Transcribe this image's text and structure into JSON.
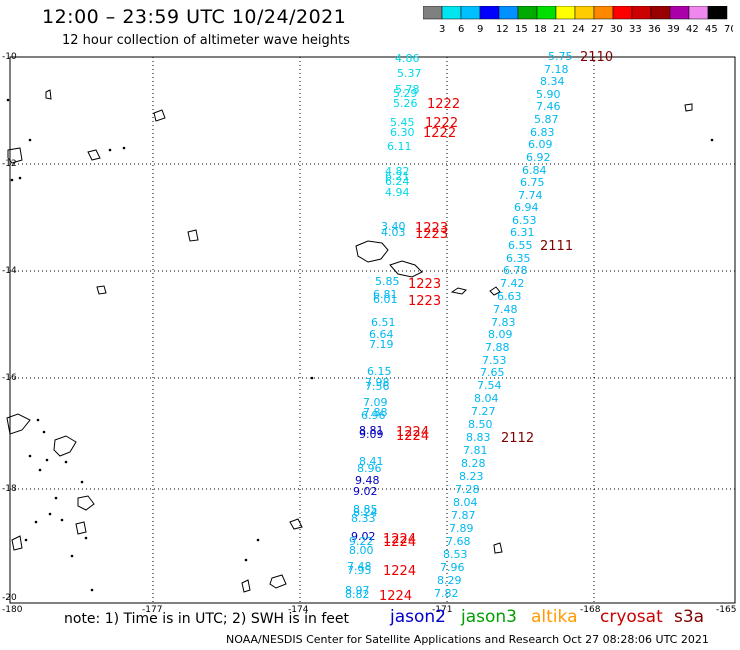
{
  "title": "12:00 – 23:59 UTC 10/24/2021",
  "subtitle": "12 hour collection of altimeter wave heights",
  "colorbar": {
    "labels": [
      "3",
      "6",
      "9",
      "12",
      "15",
      "18",
      "21",
      "24",
      "27",
      "30",
      "33",
      "36",
      "39",
      "42",
      "45",
      "70 (ft)"
    ],
    "colors": [
      "#808080",
      "#00e5ee",
      "#00c0ff",
      "#0000ff",
      "#0090ff",
      "#00aa00",
      "#00e000",
      "#ffff00",
      "#ffcc00",
      "#ff8800",
      "#ff0000",
      "#cc0000",
      "#990000",
      "#aa00aa",
      "#ee88ee",
      "#000000"
    ]
  },
  "axes": {
    "x_ticks": [
      "-180",
      "-177",
      "-174",
      "-171",
      "-168",
      "-165"
    ],
    "y_ticks": [
      "-10",
      "-12",
      "-14",
      "-16",
      "-18",
      "-20"
    ]
  },
  "tracks": [
    {
      "id": "track-left-upper",
      "color": "#00d8e8",
      "values": [
        "4.86",
        "5.37",
        "5.78",
        "5.29",
        "5.26",
        "5.45",
        "6.30",
        "6.11",
        "4.82",
        "6.21",
        "6.24",
        "4.94"
      ]
    },
    {
      "id": "track-left-lower",
      "color": "#00b8f0",
      "values": [
        "3.40",
        "4.03",
        "5.85",
        "6.81",
        "6.01",
        "6.51",
        "6.64",
        "7.19",
        "6.15",
        "7.98",
        "7.56",
        "7.09",
        "7.88",
        "6.96",
        "8.81",
        "9.09",
        "8.41",
        "8.96",
        "9.48",
        "9.02",
        "8.85",
        "8.24",
        "8.33",
        "9.02",
        "9.22",
        "8.00",
        "7.48",
        "7.95",
        "8.97",
        "8.82"
      ]
    },
    {
      "id": "track-right",
      "color": "#00b8f0",
      "values": [
        "5.75",
        "7.18",
        "8.34",
        "5.90",
        "7.46",
        "5.87",
        "6.83",
        "6.09",
        "6.92",
        "6.84",
        "6.75",
        "7.74",
        "6.94",
        "6.53",
        "6.31",
        "6.55",
        "6.35",
        "6.78",
        "7.42",
        "6.63",
        "7.48",
        "7.83",
        "8.09",
        "7.88",
        "7.53",
        "7.65",
        "7.54",
        "8.04",
        "7.27",
        "8.50",
        "8.83",
        "7.81",
        "8.28",
        "8.23",
        "7.28",
        "8.04",
        "7.87",
        "7.89",
        "7.68",
        "8.53",
        "7.96",
        "8.29",
        "7.82"
      ]
    }
  ],
  "time_labels": [
    "2110",
    "1222",
    "1222",
    "1222",
    "1223",
    "1223",
    "2111",
    "1223",
    "1223",
    "1224",
    "1224",
    "2112",
    "1224",
    "1224",
    "1224",
    "1224"
  ],
  "note": "note: 1) Time is in UTC; 2) SWH is in feet",
  "legend": [
    {
      "label": "jason2",
      "color": "#0000cc"
    },
    {
      "label": "jason3",
      "color": "#00a000"
    },
    {
      "label": "altika",
      "color": "#ff9900"
    },
    {
      "label": "cryosat",
      "color": "#cc0000"
    },
    {
      "label": "s3a",
      "color": "#800000"
    }
  ],
  "footer": "NOAA/NESDIS Center for Satellite Applications and Research    Oct 27 08:28:06 UTC 2021"
}
